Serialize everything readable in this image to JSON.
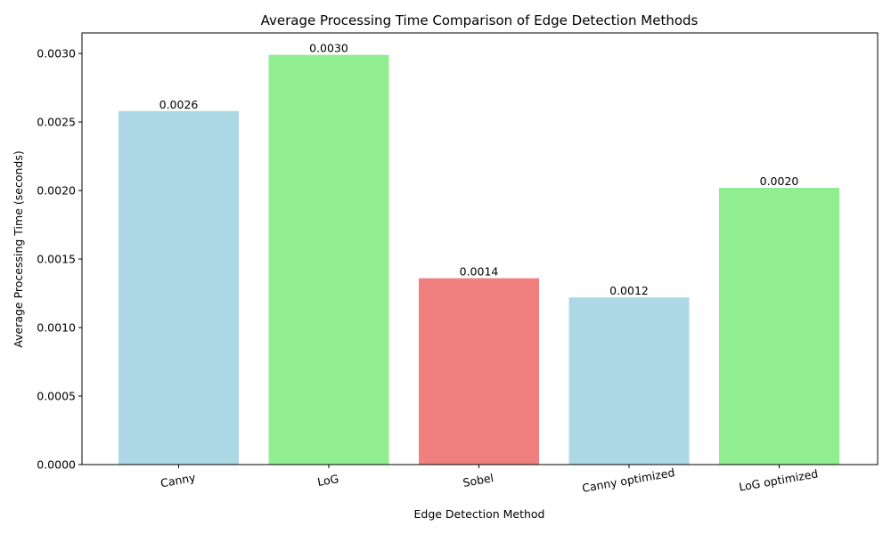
{
  "chart_data": {
    "type": "bar",
    "title": "Average Processing Time Comparison of Edge Detection Methods",
    "xlabel": "Edge Detection Method",
    "ylabel": "Average Processing Time (seconds)",
    "categories": [
      "Canny",
      "LoG",
      "Sobel",
      "Canny optimized",
      "LoG optimized"
    ],
    "values": [
      0.00258,
      0.00299,
      0.00136,
      0.00122,
      0.00202
    ],
    "data_labels": [
      "0.0026",
      "0.0030",
      "0.0014",
      "0.0012",
      "0.0020"
    ],
    "bar_colors": [
      "#add8e6",
      "#90ee90",
      "#f08080",
      "#add8e6",
      "#90ee90"
    ],
    "ylim": [
      0,
      0.00315
    ],
    "yticks": [
      0.0,
      0.0005,
      0.001,
      0.0015,
      0.002,
      0.0025,
      0.003
    ],
    "ytick_labels": [
      "0.0000",
      "0.0005",
      "0.0010",
      "0.0015",
      "0.0020",
      "0.0025",
      "0.0030"
    ],
    "xtick_rotation_deg": -10,
    "grid": false,
    "legend": "none"
  }
}
